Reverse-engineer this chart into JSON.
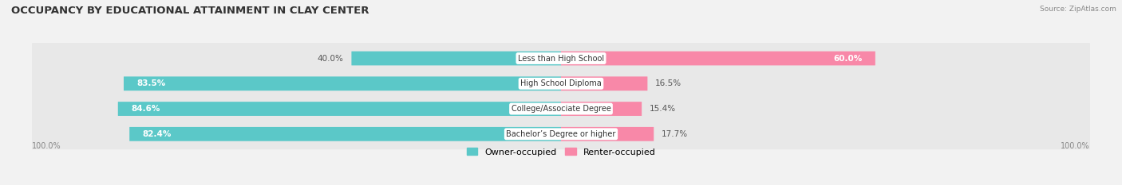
{
  "title": "OCCUPANCY BY EDUCATIONAL ATTAINMENT IN CLAY CENTER",
  "source": "Source: ZipAtlas.com",
  "categories": [
    "Less than High School",
    "High School Diploma",
    "College/Associate Degree",
    "Bachelor’s Degree or higher"
  ],
  "owner_pct": [
    40.0,
    83.5,
    84.6,
    82.4
  ],
  "renter_pct": [
    60.0,
    16.5,
    15.4,
    17.7
  ],
  "owner_color": "#5BC8C8",
  "renter_color": "#F888A8",
  "bg_color": "#F4F4F4",
  "row_bg_color": "#EAEAEA",
  "axis_label_left": "100.0%",
  "axis_label_right": "100.0%",
  "figsize": [
    14.06,
    2.33
  ],
  "dpi": 100
}
